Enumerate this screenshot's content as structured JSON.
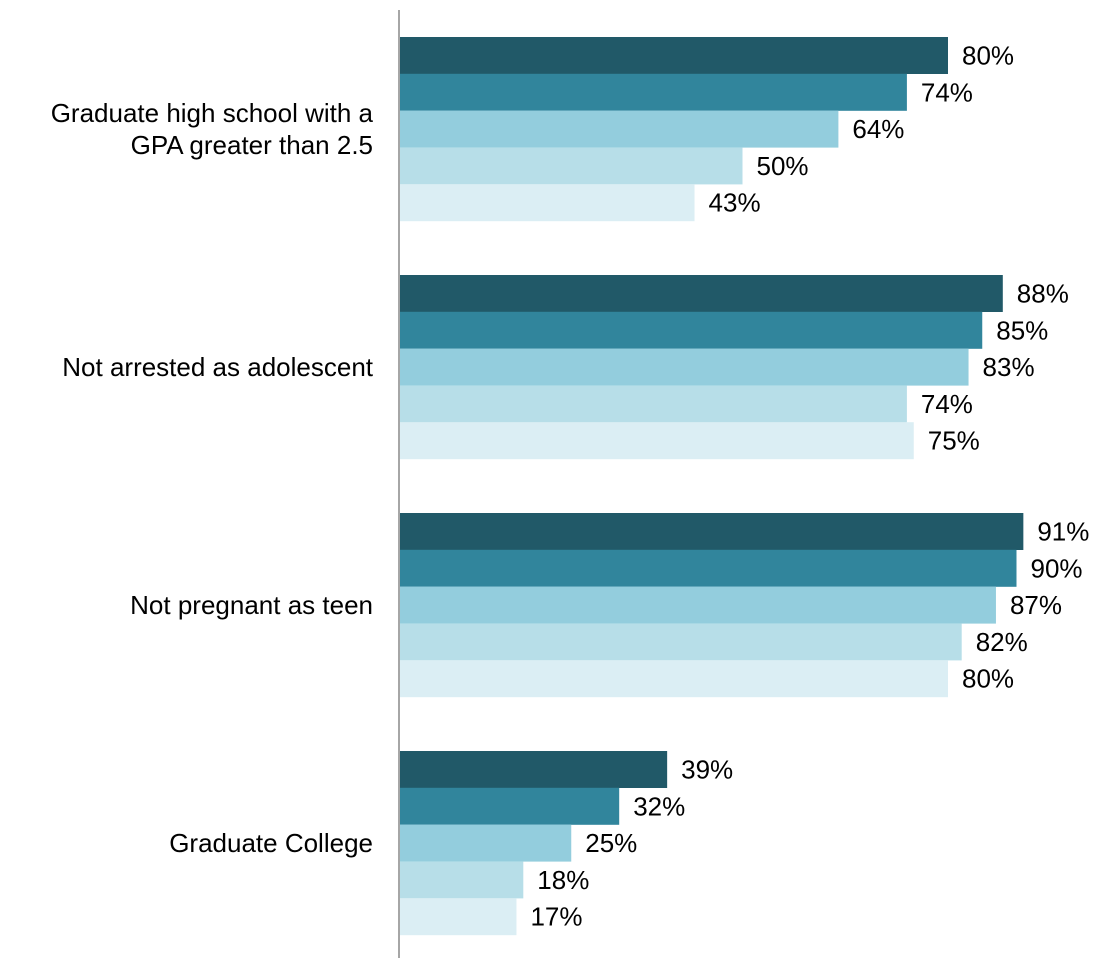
{
  "chart_data": {
    "type": "bar",
    "orientation": "horizontal",
    "categories": [
      [
        "Graduate high school with a",
        "GPA greater than 2.5"
      ],
      [
        "Not arrested as adolescent"
      ],
      [
        "Not pregnant as teen"
      ],
      [
        "Graduate College"
      ]
    ],
    "series": [
      {
        "color": "#215968",
        "values": [
          80,
          88,
          91,
          39
        ]
      },
      {
        "color": "#31859c",
        "values": [
          74,
          85,
          90,
          32
        ]
      },
      {
        "color": "#93cddd",
        "values": [
          64,
          83,
          87,
          25
        ]
      },
      {
        "color": "#b7dee8",
        "values": [
          50,
          74,
          82,
          18
        ]
      },
      {
        "color": "#dbeef4",
        "values": [
          43,
          75,
          80,
          17
        ]
      }
    ],
    "value_suffix": "%",
    "xlim": [
      0,
      100
    ],
    "grid": false,
    "legend": "none",
    "title": "",
    "xlabel": "",
    "ylabel": ""
  }
}
